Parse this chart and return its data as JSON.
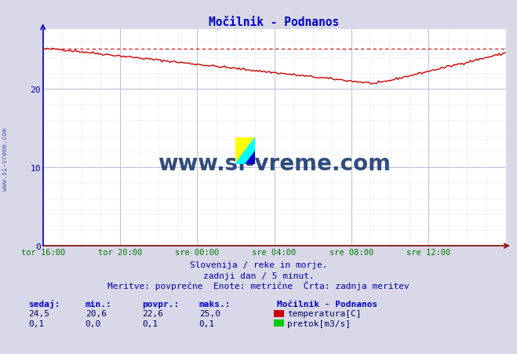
{
  "title": "Močilnik - Podnanos",
  "bg_color": "#d8d8e8",
  "plot_bg_color": "#ffffff",
  "grid_color_major": "#bbbbdd",
  "grid_color_minor": "#e8e8f4",
  "x_tick_labels": [
    "tor 16:00",
    "tor 20:00",
    "sre 00:00",
    "sre 04:00",
    "sre 08:00",
    "sre 12:00"
  ],
  "x_tick_positions": [
    0,
    48,
    96,
    144,
    192,
    240
  ],
  "y_ticks": [
    0,
    10,
    20
  ],
  "ylim": [
    0,
    27.5
  ],
  "xlim": [
    0,
    288
  ],
  "subtitle_line1": "Slovenija / reke in morje.",
  "subtitle_line2": "zadnji dan / 5 minut.",
  "subtitle_line3": "Meritve: povprečne  Enote: metrične  Črta: zadnja meritev",
  "legend_title": "Močilnik - Podnanos",
  "legend_items": [
    {
      "label": "temperatura[C]",
      "color": "#cc0000"
    },
    {
      "label": "pretok[m3/s]",
      "color": "#00cc00"
    }
  ],
  "stats_headers": [
    "sedaj:",
    "min.:",
    "povpr.:",
    "maks.:"
  ],
  "stats_temp": [
    "24,5",
    "20,6",
    "22,6",
    "25,0"
  ],
  "stats_flow": [
    "0,1",
    "0,0",
    "0,1",
    "0,1"
  ],
  "temp_line_color": "#cc0000",
  "temp_max_line_color": "#cc0000",
  "flow_line_color": "#008800",
  "watermark_text": "www.si-vreme.com",
  "watermark_color": "#1a3a6e",
  "temp_max": 25.0,
  "temp_min": 20.6,
  "n_points": 289,
  "left_label": "www.si-vreme.com",
  "left_label_color": "#5555aa"
}
